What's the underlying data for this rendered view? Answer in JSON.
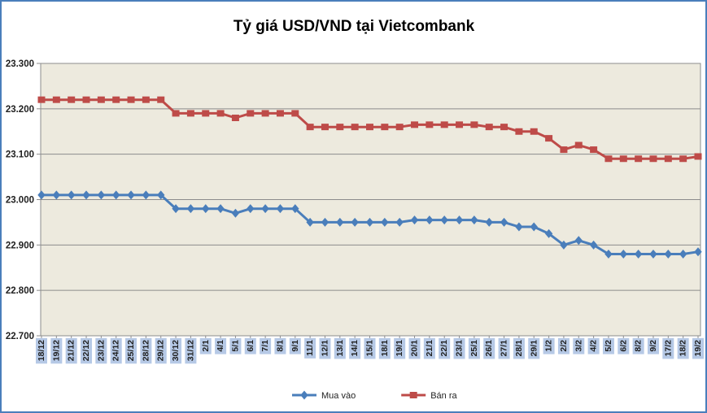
{
  "chart_data": {
    "type": "line",
    "title": "Tỷ giá USD/VND tại Vietcombank",
    "categories": [
      "18/12",
      "19/12",
      "21/12",
      "22/12",
      "23/12",
      "24/12",
      "25/12",
      "28/12",
      "29/12",
      "30/12",
      "31/12",
      "2/1",
      "4/1",
      "5/1",
      "6/1",
      "7/1",
      "8/1",
      "9/1",
      "11/1",
      "12/1",
      "13/1",
      "14/1",
      "15/1",
      "18/1",
      "19/1",
      "20/1",
      "21/1",
      "22/1",
      "23/1",
      "25/1",
      "26/1",
      "27/1",
      "28/1",
      "29/1",
      "1/2",
      "2/2",
      "3/2",
      "4/2",
      "5/2",
      "6/2",
      "8/2",
      "9/2",
      "17/2",
      "18/2",
      "19/2"
    ],
    "series": [
      {
        "name": "Mua vào",
        "marker": "diamond",
        "color": "#4a7ebb",
        "values": [
          23010,
          23010,
          23010,
          23010,
          23010,
          23010,
          23010,
          23010,
          23010,
          22980,
          22980,
          22980,
          22980,
          22970,
          22980,
          22980,
          22980,
          22980,
          22950,
          22950,
          22950,
          22950,
          22950,
          22950,
          22950,
          22955,
          22955,
          22955,
          22955,
          22955,
          22950,
          22950,
          22940,
          22940,
          22925,
          22900,
          22910,
          22900,
          22880,
          22880,
          22880,
          22880,
          22880,
          22880,
          22885
        ]
      },
      {
        "name": "Bán ra",
        "marker": "square",
        "color": "#be4b48",
        "values": [
          23220,
          23220,
          23220,
          23220,
          23220,
          23220,
          23220,
          23220,
          23220,
          23190,
          23190,
          23190,
          23190,
          23180,
          23190,
          23190,
          23190,
          23190,
          23160,
          23160,
          23160,
          23160,
          23160,
          23160,
          23160,
          23165,
          23165,
          23165,
          23165,
          23165,
          23160,
          23160,
          23150,
          23150,
          23135,
          23110,
          23120,
          23110,
          23090,
          23090,
          23090,
          23090,
          23090,
          23090,
          23095
        ]
      }
    ],
    "ylim": [
      22700,
      23300
    ],
    "y_ticks": [
      {
        "value": 23300,
        "label": "23.300"
      },
      {
        "value": 23200,
        "label": "23.200"
      },
      {
        "value": 23100,
        "label": "23.100"
      },
      {
        "value": 23000,
        "label": "23.000"
      },
      {
        "value": 22900,
        "label": "22.900"
      },
      {
        "value": 22800,
        "label": "22.800"
      },
      {
        "value": 22700,
        "label": "22.700"
      }
    ],
    "grid": true,
    "legend_position": "bottom",
    "xlabel": "",
    "ylabel": ""
  },
  "styles": {
    "frame_border": "#4a7ebb",
    "plot_bg": "#edeade",
    "grid_color": "#8c8c8c",
    "axis_color": "#8c8c8c",
    "xlabel_bg": "#b6c9e6",
    "text_color": "#1f1f1f"
  }
}
